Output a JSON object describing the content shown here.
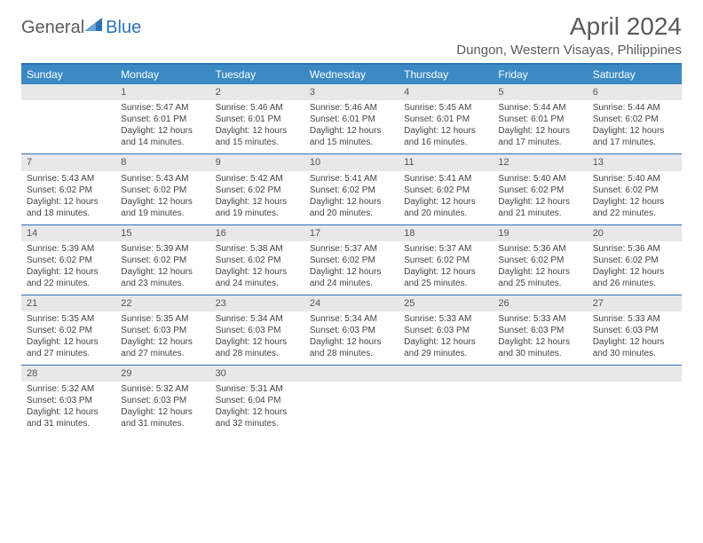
{
  "logo": {
    "part1": "General",
    "part2": "Blue"
  },
  "title": "April 2024",
  "location": "Dungon, Western Visayas, Philippines",
  "colors": {
    "accent": "#3b8ac4",
    "accentDark": "#2d72b5",
    "daynumBg": "#e8e8e8",
    "text": "#444444",
    "headerText": "#5a5a5a"
  },
  "dayNames": [
    "Sunday",
    "Monday",
    "Tuesday",
    "Wednesday",
    "Thursday",
    "Friday",
    "Saturday"
  ],
  "weeks": [
    [
      null,
      {
        "n": "1",
        "sr": "Sunrise: 5:47 AM",
        "ss": "Sunset: 6:01 PM",
        "d1": "Daylight: 12 hours",
        "d2": "and 14 minutes."
      },
      {
        "n": "2",
        "sr": "Sunrise: 5:46 AM",
        "ss": "Sunset: 6:01 PM",
        "d1": "Daylight: 12 hours",
        "d2": "and 15 minutes."
      },
      {
        "n": "3",
        "sr": "Sunrise: 5:46 AM",
        "ss": "Sunset: 6:01 PM",
        "d1": "Daylight: 12 hours",
        "d2": "and 15 minutes."
      },
      {
        "n": "4",
        "sr": "Sunrise: 5:45 AM",
        "ss": "Sunset: 6:01 PM",
        "d1": "Daylight: 12 hours",
        "d2": "and 16 minutes."
      },
      {
        "n": "5",
        "sr": "Sunrise: 5:44 AM",
        "ss": "Sunset: 6:01 PM",
        "d1": "Daylight: 12 hours",
        "d2": "and 17 minutes."
      },
      {
        "n": "6",
        "sr": "Sunrise: 5:44 AM",
        "ss": "Sunset: 6:02 PM",
        "d1": "Daylight: 12 hours",
        "d2": "and 17 minutes."
      }
    ],
    [
      {
        "n": "7",
        "sr": "Sunrise: 5:43 AM",
        "ss": "Sunset: 6:02 PM",
        "d1": "Daylight: 12 hours",
        "d2": "and 18 minutes."
      },
      {
        "n": "8",
        "sr": "Sunrise: 5:43 AM",
        "ss": "Sunset: 6:02 PM",
        "d1": "Daylight: 12 hours",
        "d2": "and 19 minutes."
      },
      {
        "n": "9",
        "sr": "Sunrise: 5:42 AM",
        "ss": "Sunset: 6:02 PM",
        "d1": "Daylight: 12 hours",
        "d2": "and 19 minutes."
      },
      {
        "n": "10",
        "sr": "Sunrise: 5:41 AM",
        "ss": "Sunset: 6:02 PM",
        "d1": "Daylight: 12 hours",
        "d2": "and 20 minutes."
      },
      {
        "n": "11",
        "sr": "Sunrise: 5:41 AM",
        "ss": "Sunset: 6:02 PM",
        "d1": "Daylight: 12 hours",
        "d2": "and 20 minutes."
      },
      {
        "n": "12",
        "sr": "Sunrise: 5:40 AM",
        "ss": "Sunset: 6:02 PM",
        "d1": "Daylight: 12 hours",
        "d2": "and 21 minutes."
      },
      {
        "n": "13",
        "sr": "Sunrise: 5:40 AM",
        "ss": "Sunset: 6:02 PM",
        "d1": "Daylight: 12 hours",
        "d2": "and 22 minutes."
      }
    ],
    [
      {
        "n": "14",
        "sr": "Sunrise: 5:39 AM",
        "ss": "Sunset: 6:02 PM",
        "d1": "Daylight: 12 hours",
        "d2": "and 22 minutes."
      },
      {
        "n": "15",
        "sr": "Sunrise: 5:39 AM",
        "ss": "Sunset: 6:02 PM",
        "d1": "Daylight: 12 hours",
        "d2": "and 23 minutes."
      },
      {
        "n": "16",
        "sr": "Sunrise: 5:38 AM",
        "ss": "Sunset: 6:02 PM",
        "d1": "Daylight: 12 hours",
        "d2": "and 24 minutes."
      },
      {
        "n": "17",
        "sr": "Sunrise: 5:37 AM",
        "ss": "Sunset: 6:02 PM",
        "d1": "Daylight: 12 hours",
        "d2": "and 24 minutes."
      },
      {
        "n": "18",
        "sr": "Sunrise: 5:37 AM",
        "ss": "Sunset: 6:02 PM",
        "d1": "Daylight: 12 hours",
        "d2": "and 25 minutes."
      },
      {
        "n": "19",
        "sr": "Sunrise: 5:36 AM",
        "ss": "Sunset: 6:02 PM",
        "d1": "Daylight: 12 hours",
        "d2": "and 25 minutes."
      },
      {
        "n": "20",
        "sr": "Sunrise: 5:36 AM",
        "ss": "Sunset: 6:02 PM",
        "d1": "Daylight: 12 hours",
        "d2": "and 26 minutes."
      }
    ],
    [
      {
        "n": "21",
        "sr": "Sunrise: 5:35 AM",
        "ss": "Sunset: 6:02 PM",
        "d1": "Daylight: 12 hours",
        "d2": "and 27 minutes."
      },
      {
        "n": "22",
        "sr": "Sunrise: 5:35 AM",
        "ss": "Sunset: 6:03 PM",
        "d1": "Daylight: 12 hours",
        "d2": "and 27 minutes."
      },
      {
        "n": "23",
        "sr": "Sunrise: 5:34 AM",
        "ss": "Sunset: 6:03 PM",
        "d1": "Daylight: 12 hours",
        "d2": "and 28 minutes."
      },
      {
        "n": "24",
        "sr": "Sunrise: 5:34 AM",
        "ss": "Sunset: 6:03 PM",
        "d1": "Daylight: 12 hours",
        "d2": "and 28 minutes."
      },
      {
        "n": "25",
        "sr": "Sunrise: 5:33 AM",
        "ss": "Sunset: 6:03 PM",
        "d1": "Daylight: 12 hours",
        "d2": "and 29 minutes."
      },
      {
        "n": "26",
        "sr": "Sunrise: 5:33 AM",
        "ss": "Sunset: 6:03 PM",
        "d1": "Daylight: 12 hours",
        "d2": "and 30 minutes."
      },
      {
        "n": "27",
        "sr": "Sunrise: 5:33 AM",
        "ss": "Sunset: 6:03 PM",
        "d1": "Daylight: 12 hours",
        "d2": "and 30 minutes."
      }
    ],
    [
      {
        "n": "28",
        "sr": "Sunrise: 5:32 AM",
        "ss": "Sunset: 6:03 PM",
        "d1": "Daylight: 12 hours",
        "d2": "and 31 minutes."
      },
      {
        "n": "29",
        "sr": "Sunrise: 5:32 AM",
        "ss": "Sunset: 6:03 PM",
        "d1": "Daylight: 12 hours",
        "d2": "and 31 minutes."
      },
      {
        "n": "30",
        "sr": "Sunrise: 5:31 AM",
        "ss": "Sunset: 6:04 PM",
        "d1": "Daylight: 12 hours",
        "d2": "and 32 minutes."
      },
      null,
      null,
      null,
      null
    ]
  ]
}
